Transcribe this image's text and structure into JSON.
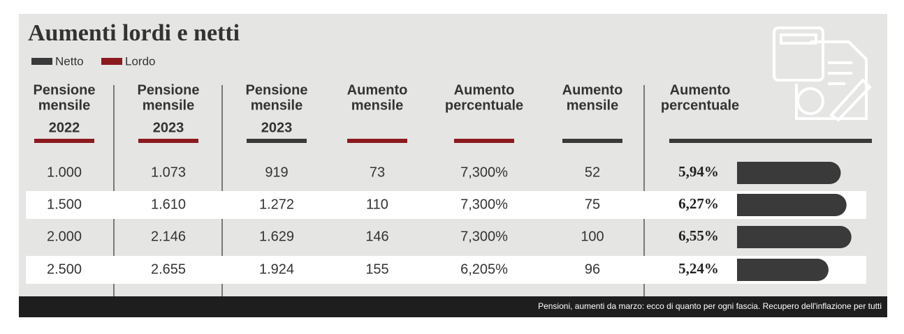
{
  "header": {
    "title": "Aumenti lordi e netti",
    "legend": [
      "Netto",
      "Lordo"
    ]
  },
  "table": {
    "columns": [
      [
        "Pensione",
        "mensile",
        "2022"
      ],
      [
        "Pensione",
        "mensile",
        "2023"
      ],
      [
        "Pensione",
        "mensile",
        "2023"
      ],
      [
        "Aumento",
        "mensile"
      ],
      [
        "Aumento",
        "percentuale"
      ],
      [
        "Aumento",
        "mensile"
      ],
      [
        "Aumento",
        "percentuale"
      ]
    ],
    "rows": [
      {
        "cells": [
          "1.000",
          "1.073",
          "919",
          "73",
          "7,300%",
          "52"
        ],
        "percent": "5,94%",
        "bar": 5.94
      },
      {
        "cells": [
          "1.500",
          "1.610",
          "1.272",
          "110",
          "7,300%",
          "75"
        ],
        "percent": "6,27%",
        "bar": 6.27
      },
      {
        "cells": [
          "2.000",
          "2.146",
          "1.629",
          "146",
          "7,300%",
          "100"
        ],
        "percent": "6,55%",
        "bar": 6.55
      },
      {
        "cells": [
          "2.500",
          "2.655",
          "1.924",
          "155",
          "6,205%",
          "96"
        ],
        "percent": "5,24%",
        "bar": 5.24
      }
    ]
  },
  "caption": "Pensioni, aumenti da marzo: ecco di quanto per ogni fascia. Recupero dell'inflazione per tutti"
}
